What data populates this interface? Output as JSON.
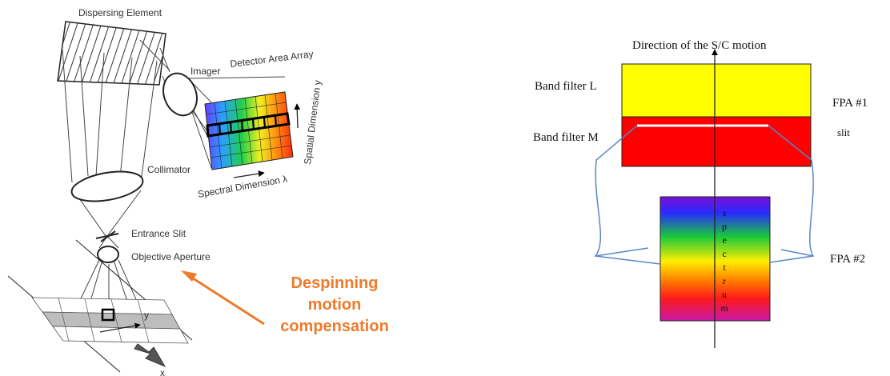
{
  "left_diagram": {
    "dispersing_element": "Dispersing Element",
    "imager": "Imager",
    "detector_area_array": "Detector Area Array",
    "spatial_dimension": "Spatial Dimension y",
    "spectral_dimension": "Spectral Dimension λ",
    "collimator": "Collimator",
    "entrance_slit": "Entrance Slit",
    "objective_aperture": "Objective Aperture",
    "y_axis": "y",
    "x_axis": "x",
    "annotation_lines": [
      "Despinning",
      "motion",
      "compensation"
    ],
    "colors": {
      "annotation": "#ee7a2a"
    }
  },
  "right_diagram": {
    "direction_label": "Direction of the S/C motion",
    "band_filter_l": "Band filter L",
    "band_filter_m": "Band filter M",
    "fpa1": "FPA #1",
    "slit": "slit",
    "fpa2": "FPA #2",
    "spectrum_letters": [
      "s",
      "p",
      "e",
      "c",
      "t",
      "r",
      "u",
      "m"
    ],
    "colors": {
      "filter_l": "#ffff00",
      "filter_m": "#ff0000",
      "bracket": "#5a86c8"
    }
  }
}
